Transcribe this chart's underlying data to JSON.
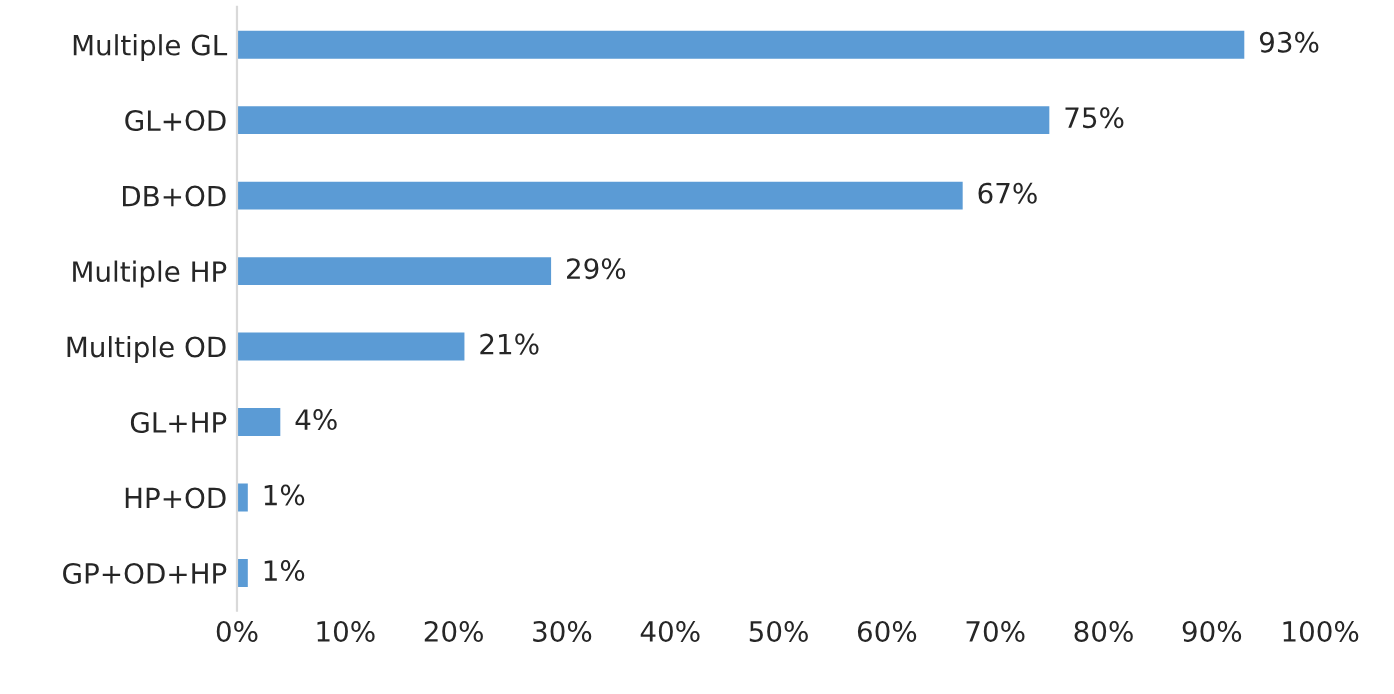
{
  "chart_data": {
    "type": "bar",
    "orientation": "horizontal",
    "categories": [
      "Multiple GL",
      "GL+OD",
      "DB+OD",
      "Multiple HP",
      "Multiple OD",
      "GL+HP",
      "HP+OD",
      "GP+OD+HP"
    ],
    "values": [
      93,
      75,
      67,
      29,
      21,
      4,
      1,
      1
    ],
    "value_labels": [
      "93%",
      "75%",
      "67%",
      "29%",
      "21%",
      "4%",
      "1%",
      "1%"
    ],
    "color": "#5b9bd5",
    "xlim": [
      0,
      100
    ],
    "xticks": [
      {
        "value": 0,
        "label": "0%"
      },
      {
        "value": 10,
        "label": "10%"
      },
      {
        "value": 20,
        "label": "20%"
      },
      {
        "value": 30,
        "label": "30%"
      },
      {
        "value": 40,
        "label": "40%"
      },
      {
        "value": 50,
        "label": "50%"
      },
      {
        "value": 60,
        "label": "60%"
      },
      {
        "value": 70,
        "label": "70%"
      },
      {
        "value": 80,
        "label": "80%"
      },
      {
        "value": 90,
        "label": "90%"
      },
      {
        "value": 100,
        "label": "100%"
      }
    ],
    "grid": false,
    "legend": false
  }
}
